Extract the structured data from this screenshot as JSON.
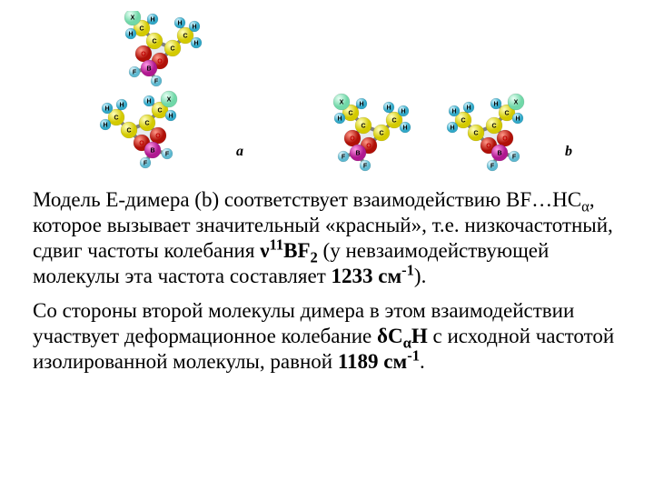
{
  "figures": {
    "a": {
      "label": "a"
    },
    "b": {
      "label": "b"
    }
  },
  "mol_colors": {
    "C": "#f2e600",
    "B": "#d837b0",
    "F": "#9ed8e6",
    "O": "#e02318",
    "H": "#60c8e0",
    "X": "#a8f0d0",
    "bond": "#808080",
    "ring": "#9aa0a8",
    "ring_fill": "#e8ebef",
    "lbl": "#000000",
    "lbl_red": "#c00000"
  },
  "mol_style": {
    "atom_r": 9,
    "atom_r_small": 6,
    "bond_w": 4,
    "font_size": 7,
    "font_family": "Arial, sans-serif"
  },
  "para1": {
    "t1": "Модель E-димера (b) соответствует взаимодействию BF…HC",
    "sub1": "α",
    "t2": ", которое вызывает значительный «красный», т.е. низкочастотный, сдвиг частоты колебания ",
    "b1a": "ν",
    "b1sup": "11",
    "b1b": "BF",
    "b1sub": "2",
    "t3": " (у невзаимодействующей молекулы эта частота составляет ",
    "b2a": "1233 см",
    "b2sup": "-1",
    "t4": ")."
  },
  "para2": {
    "t1": "Со стороны второй молекулы димера в этом взаимодействии участвует деформационное колебание ",
    "b1a": "δC",
    "b1sub": "α",
    "b1b": "H",
    "t2": " с исходной частотой изолированной молекулы, равной ",
    "b2a": "1189 см",
    "b2sup": "-1",
    "t3": "."
  }
}
